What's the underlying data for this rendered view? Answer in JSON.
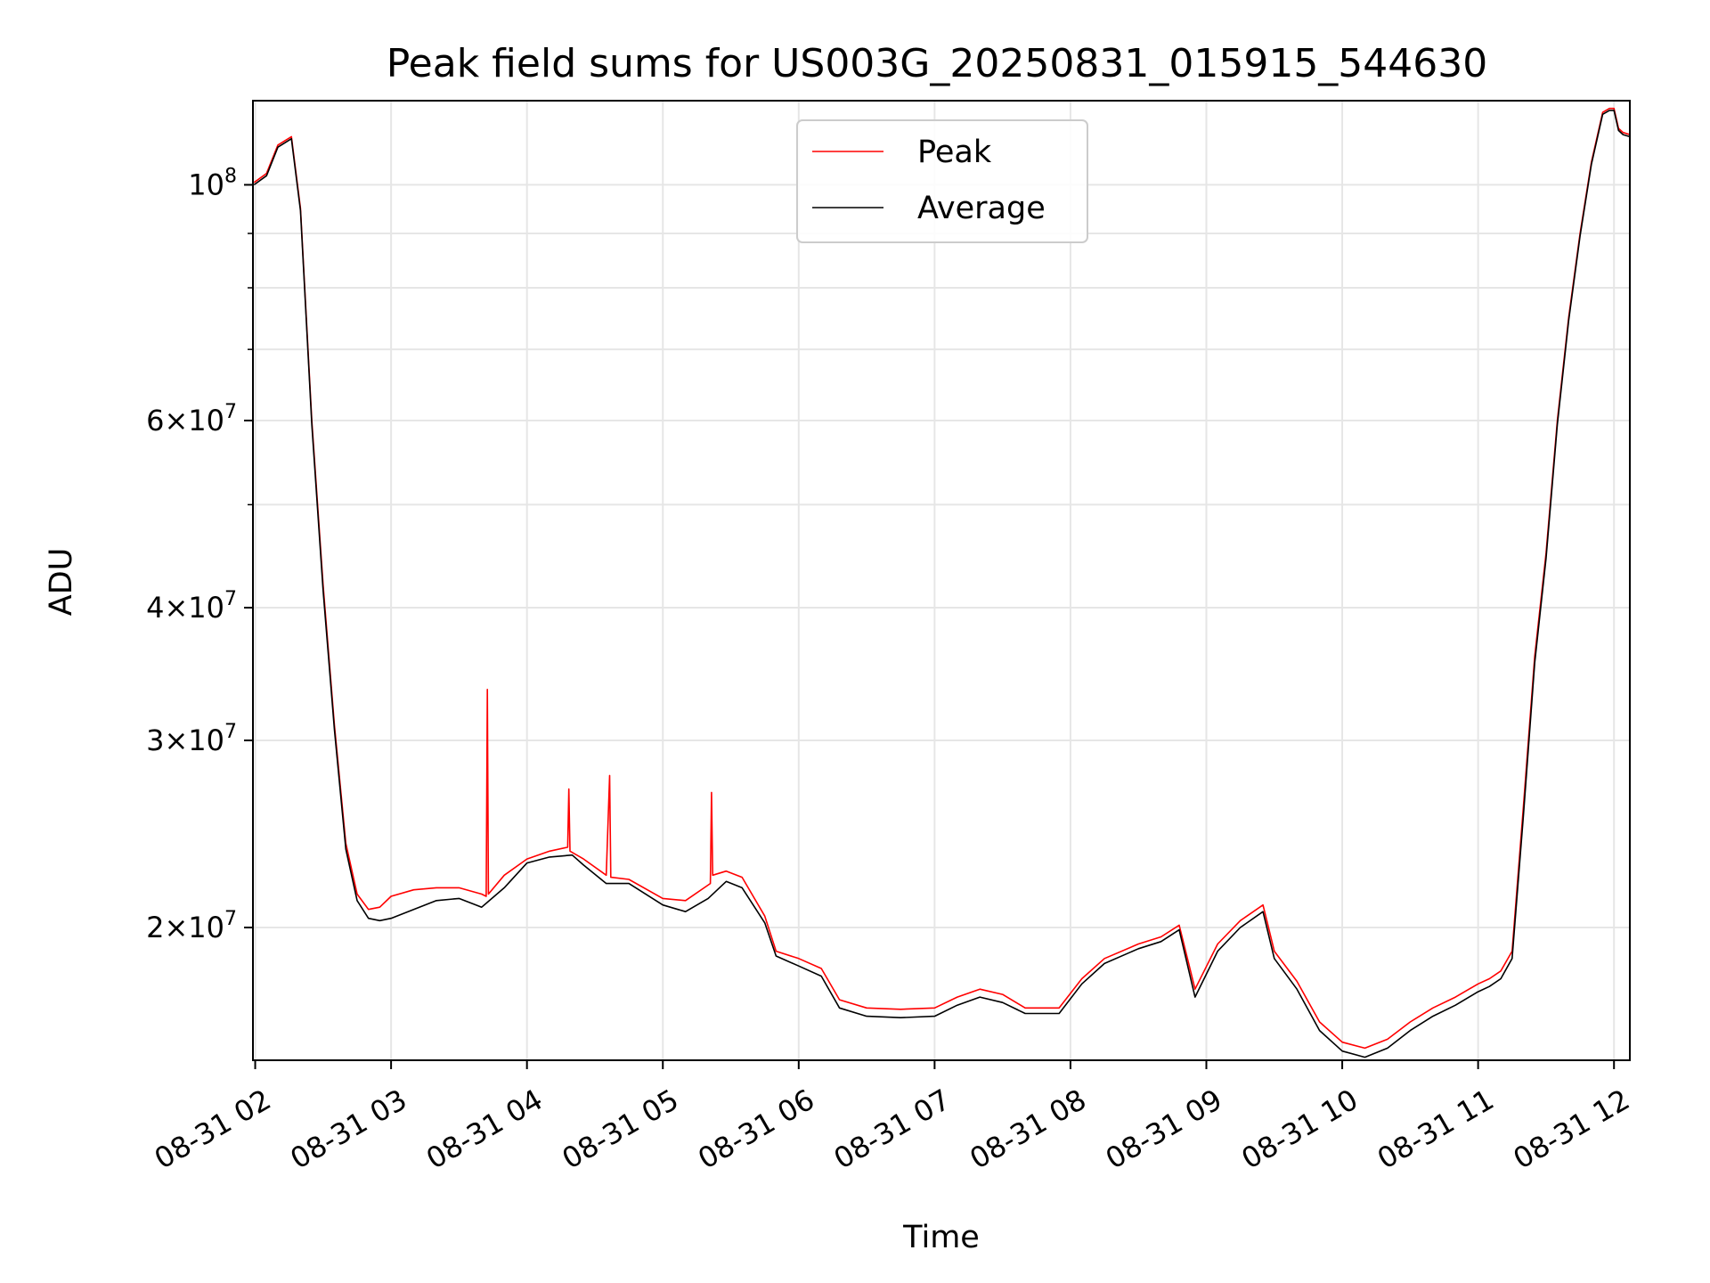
{
  "chart_data": {
    "type": "line",
    "title": "Peak field sums for US003G_20250831_015915_544630",
    "xlabel": "Time",
    "ylabel": "ADU",
    "y_scale": "log",
    "ylim": [
      15000000,
      120000000
    ],
    "xlim": [
      "2025-08-31T01:59:00",
      "2025-08-31T12:07:00"
    ],
    "grid": true,
    "legend_position": "top-center",
    "x_ticks": [
      {
        "t": "2025-08-31T02:00:00",
        "label": "08-31 02"
      },
      {
        "t": "2025-08-31T03:00:00",
        "label": "08-31 03"
      },
      {
        "t": "2025-08-31T04:00:00",
        "label": "08-31 04"
      },
      {
        "t": "2025-08-31T05:00:00",
        "label": "08-31 05"
      },
      {
        "t": "2025-08-31T06:00:00",
        "label": "08-31 06"
      },
      {
        "t": "2025-08-31T07:00:00",
        "label": "08-31 07"
      },
      {
        "t": "2025-08-31T08:00:00",
        "label": "08-31 08"
      },
      {
        "t": "2025-08-31T09:00:00",
        "label": "08-31 09"
      },
      {
        "t": "2025-08-31T10:00:00",
        "label": "08-31 10"
      },
      {
        "t": "2025-08-31T11:00:00",
        "label": "08-31 11"
      },
      {
        "t": "2025-08-31T12:00:00",
        "label": "08-31 12"
      }
    ],
    "y_major_ticks": [
      {
        "value": 20000000,
        "mantissa": "2",
        "exp": "7"
      },
      {
        "value": 30000000,
        "mantissa": "3",
        "exp": "7"
      },
      {
        "value": 40000000,
        "mantissa": "4",
        "exp": "7"
      },
      {
        "value": 60000000,
        "mantissa": "6",
        "exp": "7"
      },
      {
        "value": 100000000,
        "mantissa": "",
        "exp": "8"
      }
    ],
    "y_minor_ticks": [
      50000000,
      70000000,
      80000000,
      90000000
    ],
    "series": [
      {
        "name": "Peak",
        "color": "#ff0000",
        "x": [
          "2025-08-31T01:59:30",
          "2025-08-31T02:05:00",
          "2025-08-31T02:10:00",
          "2025-08-31T02:16:00",
          "2025-08-31T02:20:00",
          "2025-08-31T02:25:00",
          "2025-08-31T02:30:00",
          "2025-08-31T02:35:00",
          "2025-08-31T02:40:00",
          "2025-08-31T02:45:00",
          "2025-08-31T02:50:00",
          "2025-08-31T02:55:00",
          "2025-08-31T03:00:00",
          "2025-08-31T03:10:00",
          "2025-08-31T03:20:00",
          "2025-08-31T03:30:00",
          "2025-08-31T03:40:00",
          "2025-08-31T03:42:00",
          "2025-08-31T03:42:30",
          "2025-08-31T03:43:00",
          "2025-08-31T03:50:00",
          "2025-08-31T04:00:00",
          "2025-08-31T04:10:00",
          "2025-08-31T04:18:00",
          "2025-08-31T04:18:30",
          "2025-08-31T04:19:00",
          "2025-08-31T04:25:00",
          "2025-08-31T04:35:00",
          "2025-08-31T04:36:30",
          "2025-08-31T04:37:00",
          "2025-08-31T04:45:00",
          "2025-08-31T05:00:00",
          "2025-08-31T05:10:00",
          "2025-08-31T05:21:00",
          "2025-08-31T05:21:30",
          "2025-08-31T05:22:00",
          "2025-08-31T05:28:00",
          "2025-08-31T05:35:00",
          "2025-08-31T05:45:00",
          "2025-08-31T05:50:00",
          "2025-08-31T06:00:00",
          "2025-08-31T06:10:00",
          "2025-08-31T06:18:00",
          "2025-08-31T06:30:00",
          "2025-08-31T06:45:00",
          "2025-08-31T07:00:00",
          "2025-08-31T07:10:00",
          "2025-08-31T07:20:00",
          "2025-08-31T07:30:00",
          "2025-08-31T07:40:00",
          "2025-08-31T07:55:00",
          "2025-08-31T08:05:00",
          "2025-08-31T08:15:00",
          "2025-08-31T08:30:00",
          "2025-08-31T08:40:00",
          "2025-08-31T08:48:00",
          "2025-08-31T08:55:00",
          "2025-08-31T09:05:00",
          "2025-08-31T09:15:00",
          "2025-08-31T09:25:00",
          "2025-08-31T09:30:00",
          "2025-08-31T09:40:00",
          "2025-08-31T09:50:00",
          "2025-08-31T10:00:00",
          "2025-08-31T10:10:00",
          "2025-08-31T10:20:00",
          "2025-08-31T10:30:00",
          "2025-08-31T10:40:00",
          "2025-08-31T10:50:00",
          "2025-08-31T11:00:00",
          "2025-08-31T11:05:00",
          "2025-08-31T11:10:00",
          "2025-08-31T11:15:00",
          "2025-08-31T11:20:00",
          "2025-08-31T11:25:00",
          "2025-08-31T11:30:00",
          "2025-08-31T11:35:00",
          "2025-08-31T11:40:00",
          "2025-08-31T11:45:00",
          "2025-08-31T11:50:00",
          "2025-08-31T11:55:00",
          "2025-08-31T11:58:00",
          "2025-08-31T12:00:00",
          "2025-08-31T12:02:00",
          "2025-08-31T12:04:00",
          "2025-08-31T12:07:00"
        ],
        "y": [
          100500000,
          102500000,
          109000000,
          111000000,
          95000000,
          60000000,
          42000000,
          31000000,
          24000000,
          21500000,
          20800000,
          20900000,
          21400000,
          21700000,
          21800000,
          21800000,
          21500000,
          21400000,
          33500000,
          21500000,
          22400000,
          23200000,
          23600000,
          23800000,
          27000000,
          23600000,
          23200000,
          22400000,
          27800000,
          22300000,
          22200000,
          21300000,
          21200000,
          22000000,
          26800000,
          22400000,
          22600000,
          22300000,
          20500000,
          19000000,
          18700000,
          18300000,
          17100000,
          16800000,
          16750000,
          16800000,
          17200000,
          17500000,
          17300000,
          16800000,
          16800000,
          17900000,
          18700000,
          19300000,
          19600000,
          20100000,
          17500000,
          19300000,
          20300000,
          21000000,
          19000000,
          17800000,
          16300000,
          15600000,
          15400000,
          15700000,
          16300000,
          16800000,
          17200000,
          17700000,
          17900000,
          18200000,
          19000000,
          26000000,
          36000000,
          45000000,
          60000000,
          75000000,
          90000000,
          105000000,
          117000000,
          118000000,
          118000000,
          113000000,
          112000000,
          111500000
        ]
      },
      {
        "name": "Average",
        "color": "#000000",
        "x": [
          "2025-08-31T01:59:30",
          "2025-08-31T02:05:00",
          "2025-08-31T02:10:00",
          "2025-08-31T02:16:00",
          "2025-08-31T02:20:00",
          "2025-08-31T02:25:00",
          "2025-08-31T02:30:00",
          "2025-08-31T02:35:00",
          "2025-08-31T02:40:00",
          "2025-08-31T02:45:00",
          "2025-08-31T02:50:00",
          "2025-08-31T02:55:00",
          "2025-08-31T03:00:00",
          "2025-08-31T03:10:00",
          "2025-08-31T03:20:00",
          "2025-08-31T03:30:00",
          "2025-08-31T03:40:00",
          "2025-08-31T03:50:00",
          "2025-08-31T04:00:00",
          "2025-08-31T04:10:00",
          "2025-08-31T04:20:00",
          "2025-08-31T04:25:00",
          "2025-08-31T04:35:00",
          "2025-08-31T04:45:00",
          "2025-08-31T05:00:00",
          "2025-08-31T05:10:00",
          "2025-08-31T05:20:00",
          "2025-08-31T05:28:00",
          "2025-08-31T05:35:00",
          "2025-08-31T05:45:00",
          "2025-08-31T05:50:00",
          "2025-08-31T06:00:00",
          "2025-08-31T06:10:00",
          "2025-08-31T06:18:00",
          "2025-08-31T06:30:00",
          "2025-08-31T06:45:00",
          "2025-08-31T07:00:00",
          "2025-08-31T07:10:00",
          "2025-08-31T07:20:00",
          "2025-08-31T07:30:00",
          "2025-08-31T07:40:00",
          "2025-08-31T07:55:00",
          "2025-08-31T08:05:00",
          "2025-08-31T08:15:00",
          "2025-08-31T08:30:00",
          "2025-08-31T08:40:00",
          "2025-08-31T08:48:00",
          "2025-08-31T08:55:00",
          "2025-08-31T09:05:00",
          "2025-08-31T09:15:00",
          "2025-08-31T09:25:00",
          "2025-08-31T09:30:00",
          "2025-08-31T09:40:00",
          "2025-08-31T09:50:00",
          "2025-08-31T10:00:00",
          "2025-08-31T10:10:00",
          "2025-08-31T10:20:00",
          "2025-08-31T10:30:00",
          "2025-08-31T10:40:00",
          "2025-08-31T10:50:00",
          "2025-08-31T11:00:00",
          "2025-08-31T11:05:00",
          "2025-08-31T11:10:00",
          "2025-08-31T11:15:00",
          "2025-08-31T11:20:00",
          "2025-08-31T11:25:00",
          "2025-08-31T11:30:00",
          "2025-08-31T11:35:00",
          "2025-08-31T11:40:00",
          "2025-08-31T11:45:00",
          "2025-08-31T11:50:00",
          "2025-08-31T11:55:00",
          "2025-08-31T11:58:00",
          "2025-08-31T12:00:00",
          "2025-08-31T12:02:00",
          "2025-08-31T12:04:00",
          "2025-08-31T12:07:00"
        ],
        "y": [
          100000000,
          102000000,
          108500000,
          110500000,
          94500000,
          59500000,
          41500000,
          30700000,
          23700000,
          21200000,
          20400000,
          20300000,
          20400000,
          20800000,
          21200000,
          21300000,
          20900000,
          21800000,
          23000000,
          23300000,
          23400000,
          22900000,
          22000000,
          22000000,
          21000000,
          20700000,
          21300000,
          22100000,
          21800000,
          20200000,
          18800000,
          18400000,
          18000000,
          16800000,
          16500000,
          16450000,
          16500000,
          16900000,
          17200000,
          17000000,
          16600000,
          16600000,
          17700000,
          18500000,
          19100000,
          19400000,
          19900000,
          17200000,
          19000000,
          20000000,
          20700000,
          18700000,
          17500000,
          16000000,
          15300000,
          15100000,
          15400000,
          16000000,
          16500000,
          16900000,
          17400000,
          17600000,
          17900000,
          18700000,
          25500000,
          35500000,
          44500000,
          59500000,
          74500000,
          89500000,
          104500000,
          116500000,
          117500000,
          117500000,
          112500000,
          111500000,
          111000000
        ]
      }
    ]
  }
}
